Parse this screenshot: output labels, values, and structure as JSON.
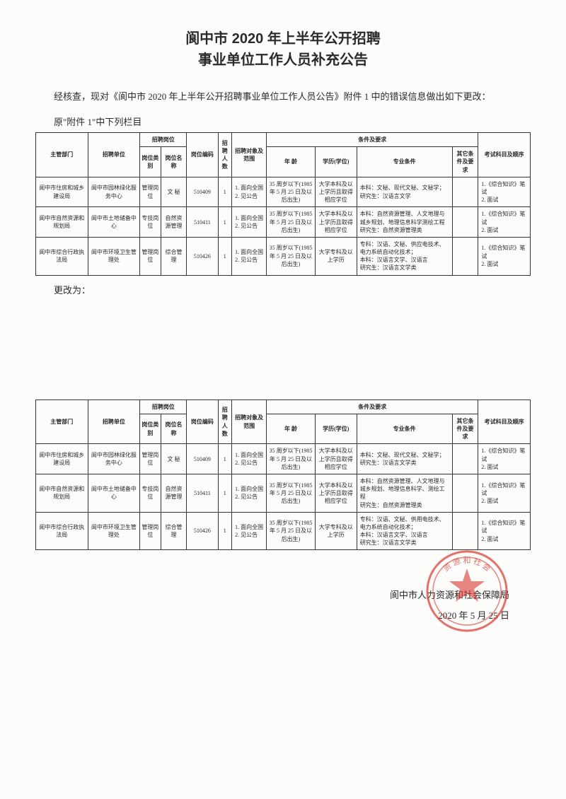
{
  "title_l1": "阆中市 2020 年上半年公开招聘",
  "title_l2": "事业单位工作人员补充公告",
  "intro": "经核查，现对《阆中市 2020 年上半年公开招聘事业单位工作人员公告》附件 1 中的错误信息做出如下更改：",
  "label_before": "原\"附件 1\"中下列栏目",
  "label_after": "更改为：",
  "headers": {
    "dept": "主管部门",
    "unit": "招聘单位",
    "position_group": "招聘岗位",
    "ptype": "岗位类别",
    "pname": "岗位名称",
    "code": "岗位编码",
    "num": "招聘人数",
    "scope": "招聘对象及范围",
    "req_group": "条件及要求",
    "age": "年 龄",
    "edu": "学历(学位)",
    "major": "专业条件",
    "other": "其它条件及要求",
    "exam": "考试科目及顺序"
  },
  "table1": {
    "rows": [
      {
        "dept": "阆中市住房和城乡建设局",
        "unit": "阆中市园林绿化服务中心",
        "ptype": "管理岗位",
        "pname": "文 秘",
        "code": "510409",
        "num": "1",
        "scope": "1. 面向全国\n2. 见公告",
        "age": "35 周岁以下(1985 年 5 月 25 日及以后出生)",
        "edu": "大学本科及以上学历且取得相应学位",
        "major": "本科：文秘、现代文秘、文秘学；\n研究生：汉语言文学",
        "other": "",
        "exam": "1.《综合知识》笔试\n2. 面试"
      },
      {
        "dept": "阆中市自然资源和规划局",
        "unit": "阆中市土地储备中心",
        "ptype": "专技岗位",
        "pname": "自然资源管理",
        "code": "510411",
        "num": "1",
        "scope": "1. 面向全国\n2. 见公告",
        "age": "35 周岁以下(1985 年 5 月 25 日及以后出生)",
        "edu": "大学本科及以上学历且取得相应学位",
        "major": "本科：自然资源管理、人文地理与城乡规划、地理信息科学测绘工程\n研究生：自然资源管理类",
        "other": "",
        "exam": "1.《综合知识》笔试\n2. 面试"
      },
      {
        "dept": "阆中市综合行政执法局",
        "unit": "阆中市环境卫生管理处",
        "ptype": "管理岗位",
        "pname": "综合管理",
        "code": "510426",
        "num": "1",
        "scope": "1. 面向全国\n2. 见公告",
        "age": "35 周岁以下(1985 年 5 月 25 日及以后出生)",
        "edu": "大学专科及以上学历",
        "major": "专科：汉语、文秘、供应电技术、电力系统自动化技术；\n本科：汉语言文学、汉语言\n研究生：汉语言文学类",
        "other": "",
        "exam": "1.《综合知识》笔试\n2. 面试"
      }
    ]
  },
  "table2": {
    "rows": [
      {
        "dept": "阆中市住房和城乡建设局",
        "unit": "阆中市园林绿化服务中心",
        "ptype": "管理岗位",
        "pname": "文 秘",
        "code": "510409",
        "num": "1",
        "scope": "1. 面向全国\n2. 见公告",
        "age": "35 周岁以下(1985 年 5 月 25 日及以后出生)",
        "edu": "大学本科及以上学历且取得相应学位",
        "major": "本科：文秘、现代文秘、文秘学；\n研究生：汉语言文学类",
        "other": "",
        "exam": "1.《综合知识》笔试\n2. 面试"
      },
      {
        "dept": "阆中市自然资源和规划局",
        "unit": "阆中市土地储备中心",
        "ptype": "专技岗位",
        "pname": "自然资源管理",
        "code": "510411",
        "num": "1",
        "scope": "1. 面向全国\n2. 见公告",
        "age": "35 周岁以下(1985 年 5 月 25 日及以后出生)",
        "edu": "大学本科及以上学历且取得相应学位",
        "major": "本科：自然资源管理、人文地理与城乡规划、地理信息科学、测绘工程\n研究生：自然资源管理类",
        "other": "",
        "exam": "1.《综合知识》笔试\n2. 面试"
      },
      {
        "dept": "阆中市综合行政执法局",
        "unit": "阆中市环境卫生管理处",
        "ptype": "管理岗位",
        "pname": "综合管理",
        "code": "510426",
        "num": "1",
        "scope": "1. 面向全国\n2. 见公告",
        "age": "35 周岁以下(1985 年 5 月 25 日及以后出生)",
        "edu": "大学专科及以上学历",
        "major": "专科：汉语、文秘、供用电技术、电力系统自动化技术；\n本科：汉语言文学、汉语言\n研究生：汉语言文学类",
        "other": "",
        "exam": "1.《综合知识》笔试\n2. 面试"
      }
    ]
  },
  "sign_org": "阆中市人力资源和社会保障局",
  "sign_date": "2020 年 5 月 25 日",
  "stamp_color": "#d9362f"
}
